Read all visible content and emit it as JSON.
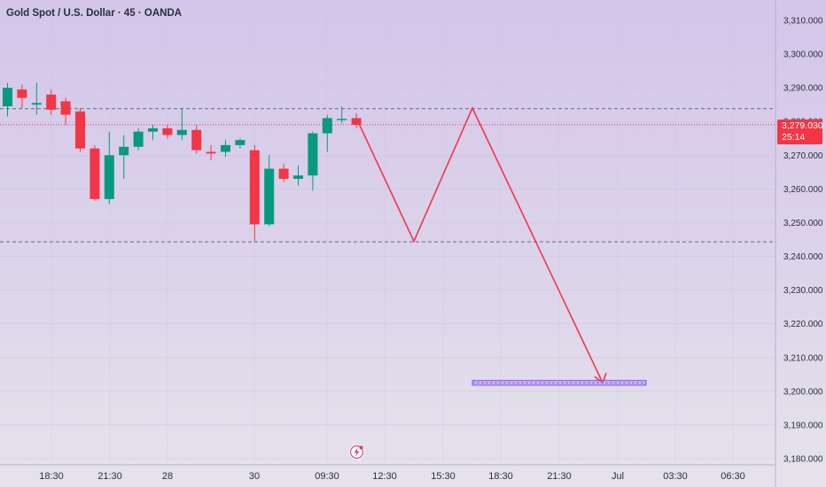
{
  "header": {
    "title": "Gold Spot / U.S. Dollar · 45 · OANDA"
  },
  "price_label": {
    "price": "3,279.030",
    "countdown": "25:14"
  },
  "colors": {
    "up": "#089981",
    "down": "#f23645",
    "projection": "#f23645",
    "level_line": "#5d6a8a",
    "current_price_line": "#f23645",
    "target_zone_fill": "#b89ae6",
    "target_zone_border": "#7c4dff"
  },
  "icons": {
    "logo": "lightning-bolt-icon"
  },
  "chart_data": {
    "type": "candlestick",
    "ylim": [
      3176,
      3314
    ],
    "y_ticks": [
      "3,180.000",
      "3,190.000",
      "3,200.000",
      "3,210.000",
      "3,220.000",
      "3,230.000",
      "3,240.000",
      "3,250.000",
      "3,260.000",
      "3,270.000",
      "3,280.000",
      "3,290.000",
      "3,300.000",
      "3,310.000"
    ],
    "y_tick_values": [
      3180,
      3190,
      3200,
      3210,
      3220,
      3230,
      3240,
      3250,
      3260,
      3270,
      3280,
      3290,
      3300,
      3310
    ],
    "x_ticks": [
      "18:30",
      "21:30",
      "28",
      "30",
      "09:30",
      "12:30",
      "15:30",
      "18:30",
      "21:30",
      "Jul",
      "03:30",
      "06:30"
    ],
    "candles": [
      {
        "o": 3284.5,
        "h": 3291.5,
        "l": 3281.5,
        "c": 3290.0
      },
      {
        "o": 3289.5,
        "h": 3291.0,
        "l": 3284.0,
        "c": 3287.0
      },
      {
        "o": 3285.0,
        "h": 3291.5,
        "l": 3282.0,
        "c": 3285.5
      },
      {
        "o": 3288.0,
        "h": 3289.5,
        "l": 3282.0,
        "c": 3283.5
      },
      {
        "o": 3286.0,
        "h": 3287.0,
        "l": 3279.0,
        "c": 3282.0
      },
      {
        "o": 3283.0,
        "h": 3284.0,
        "l": 3271.0,
        "c": 3272.0
      },
      {
        "o": 3272.0,
        "h": 3273.0,
        "l": 3256.5,
        "c": 3257.0
      },
      {
        "o": 3257.0,
        "h": 3277.0,
        "l": 3255.5,
        "c": 3270.0
      },
      {
        "o": 3270.0,
        "h": 3276.0,
        "l": 3263.0,
        "c": 3272.5
      },
      {
        "o": 3272.5,
        "h": 3278.0,
        "l": 3271.5,
        "c": 3277.0
      },
      {
        "o": 3277.0,
        "h": 3279.0,
        "l": 3274.5,
        "c": 3278.0
      },
      {
        "o": 3278.0,
        "h": 3279.0,
        "l": 3275.0,
        "c": 3276.0
      },
      {
        "o": 3276.0,
        "h": 3284.0,
        "l": 3274.5,
        "c": 3277.5
      },
      {
        "o": 3277.5,
        "h": 3279.0,
        "l": 3270.5,
        "c": 3271.5
      },
      {
        "o": 3271.0,
        "h": 3273.0,
        "l": 3268.5,
        "c": 3270.5
      },
      {
        "o": 3271.0,
        "h": 3274.5,
        "l": 3269.5,
        "c": 3273.0
      },
      {
        "o": 3273.0,
        "h": 3275.0,
        "l": 3272.0,
        "c": 3274.5
      },
      {
        "o": 3271.5,
        "h": 3273.0,
        "l": 3244.5,
        "c": 3249.5
      },
      {
        "o": 3249.5,
        "h": 3270.0,
        "l": 3249.0,
        "c": 3266.0
      },
      {
        "o": 3266.0,
        "h": 3267.5,
        "l": 3262.0,
        "c": 3263.0
      },
      {
        "o": 3263.0,
        "h": 3267.0,
        "l": 3261.0,
        "c": 3264.0
      },
      {
        "o": 3264.0,
        "h": 3277.0,
        "l": 3259.5,
        "c": 3276.5
      },
      {
        "o": 3276.5,
        "h": 3282.0,
        "l": 3271.0,
        "c": 3281.0
      },
      {
        "o": 3280.5,
        "h": 3284.5,
        "l": 3279.5,
        "c": 3280.8
      },
      {
        "o": 3281.0,
        "h": 3282.5,
        "l": 3278.0,
        "c": 3279.0
      }
    ],
    "levels": [
      3283.8,
      3244.3
    ],
    "current_price": 3279.03,
    "projection_path": [
      3280.5,
      3244.5,
      3284.0,
      3202.5
    ],
    "target_zone": [
      3201.8,
      3203.2
    ]
  }
}
